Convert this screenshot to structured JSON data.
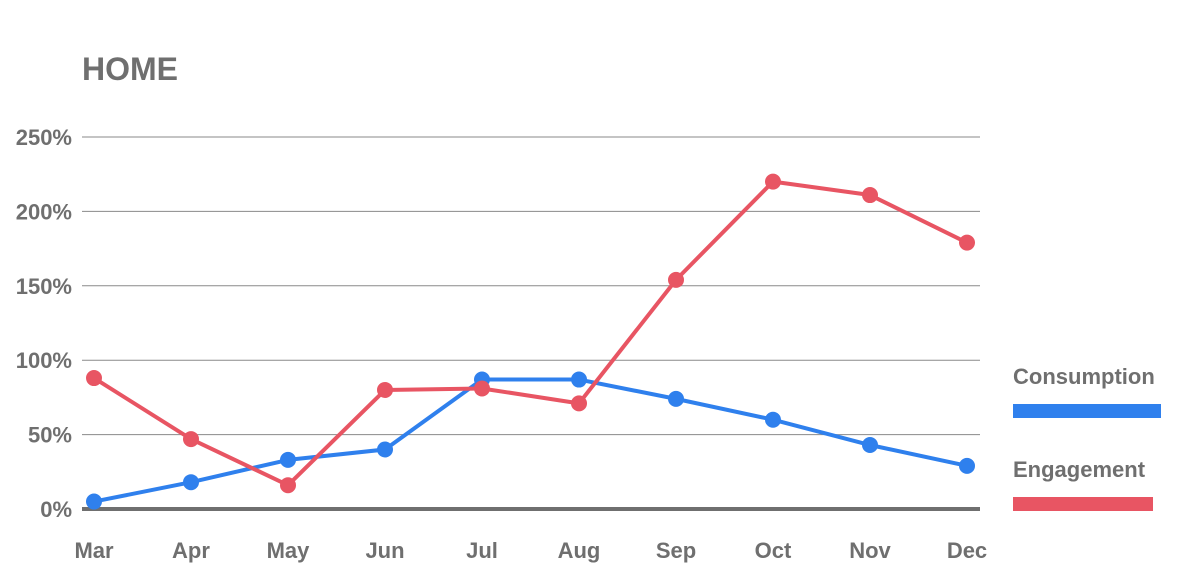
{
  "chart_data": {
    "type": "line",
    "title": "HOME",
    "categories": [
      "Mar",
      "Apr",
      "May",
      "Jun",
      "Jul",
      "Aug",
      "Sep",
      "Oct",
      "Nov",
      "Dec"
    ],
    "yticks": [
      "0%",
      "50%",
      "100%",
      "150%",
      "200%",
      "250%"
    ],
    "ylim": [
      0,
      250
    ],
    "grid": true,
    "legend_position": "right",
    "series": [
      {
        "name": "Consumption",
        "color": "#2f80ed",
        "values": [
          5,
          18,
          33,
          40,
          87,
          87,
          74,
          60,
          43,
          29
        ]
      },
      {
        "name": "Engagement",
        "color": "#e85563",
        "values": [
          88,
          47,
          16,
          80,
          81,
          71,
          154,
          220,
          211,
          179
        ]
      }
    ]
  }
}
